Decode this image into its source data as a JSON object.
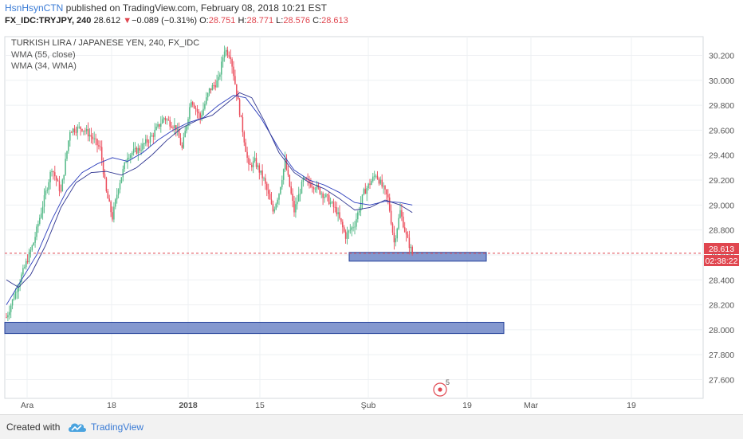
{
  "header": {
    "author": "HsnHsynCTN",
    "published_text": " published on TradingView.com, February 08, 2018 10:21 EST",
    "symbol": "FX_IDC:TRYJPY, 240",
    "last": "28.612",
    "change_arrow": "▼",
    "change": "−0.089 (−0.31%)",
    "o_label": "O:",
    "o_value": "28.751",
    "h_label": "H:",
    "h_value": "28.771",
    "l_label": "L:",
    "l_value": "28.576",
    "c_label": "C:",
    "c_value": "28.613"
  },
  "legend": {
    "title": "TURKISH LIRA / JAPANESE YEN, 240, FX_IDC",
    "wma1": "WMA (55, close)",
    "wma2": "WMA (34, WMA)"
  },
  "price_badge": "28.613",
  "time_badge": "02:38:22",
  "event_badge": "5",
  "footer": {
    "created_with": "Created with",
    "brand": "TradingView"
  },
  "colors": {
    "up": "#53b987",
    "down": "#eb4d5c",
    "wma55": "#2b3dbc",
    "wma34": "#2f3590",
    "zone_fill": "#6f86c7",
    "zone_stroke": "#24419a",
    "price_line": "#e0464f",
    "grid": "#eef0f3"
  },
  "chart_data": {
    "type": "candlestick",
    "title": "TURKISH LIRA / JAPANESE YEN, 240, FX_IDC",
    "ylim": [
      27.45,
      30.35
    ],
    "y_ticks": [
      "30.200",
      "30.000",
      "29.800",
      "29.600",
      "29.400",
      "29.200",
      "29.000",
      "28.800",
      "28.600",
      "28.400",
      "28.200",
      "28.000",
      "27.800",
      "27.600"
    ],
    "x_ticks": [
      "Ara",
      "18",
      "2018",
      "15",
      "Şub",
      "19",
      "Mar",
      "19"
    ],
    "last_price": 28.613,
    "support_zones": [
      {
        "low": 28.55,
        "high": 28.62
      },
      {
        "low": 27.97,
        "high": 28.06
      }
    ],
    "anchors": [
      [
        0,
        28.1
      ],
      [
        6,
        28.3
      ],
      [
        12,
        28.5
      ],
      [
        18,
        28.7
      ],
      [
        24,
        29.0
      ],
      [
        30,
        29.3
      ],
      [
        36,
        29.1
      ],
      [
        42,
        29.6
      ],
      [
        50,
        29.62
      ],
      [
        56,
        29.55
      ],
      [
        62,
        29.45
      ],
      [
        66,
        29.1
      ],
      [
        70,
        28.9
      ],
      [
        74,
        29.15
      ],
      [
        80,
        29.4
      ],
      [
        88,
        29.45
      ],
      [
        96,
        29.55
      ],
      [
        104,
        29.7
      ],
      [
        112,
        29.62
      ],
      [
        116,
        29.45
      ],
      [
        122,
        29.85
      ],
      [
        128,
        29.7
      ],
      [
        134,
        29.92
      ],
      [
        140,
        30.0
      ],
      [
        144,
        30.25
      ],
      [
        148,
        30.2
      ],
      [
        152,
        29.9
      ],
      [
        156,
        29.6
      ],
      [
        160,
        29.3
      ],
      [
        164,
        29.35
      ],
      [
        170,
        29.2
      ],
      [
        176,
        28.95
      ],
      [
        180,
        29.1
      ],
      [
        184,
        29.35
      ],
      [
        190,
        28.95
      ],
      [
        196,
        29.2
      ],
      [
        204,
        29.15
      ],
      [
        212,
        29.05
      ],
      [
        218,
        28.95
      ],
      [
        224,
        28.75
      ],
      [
        230,
        28.85
      ],
      [
        236,
        29.1
      ],
      [
        244,
        29.25
      ],
      [
        248,
        29.15
      ],
      [
        252,
        29.05
      ],
      [
        256,
        28.7
      ],
      [
        260,
        28.95
      ],
      [
        264,
        28.75
      ],
      [
        268,
        28.61
      ]
    ],
    "wma55_anchors": [
      [
        0,
        28.2
      ],
      [
        10,
        28.4
      ],
      [
        20,
        28.6
      ],
      [
        30,
        28.88
      ],
      [
        40,
        29.12
      ],
      [
        50,
        29.26
      ],
      [
        60,
        29.33
      ],
      [
        70,
        29.38
      ],
      [
        80,
        29.35
      ],
      [
        90,
        29.42
      ],
      [
        100,
        29.52
      ],
      [
        110,
        29.6
      ],
      [
        120,
        29.66
      ],
      [
        130,
        29.7
      ],
      [
        140,
        29.8
      ],
      [
        150,
        29.88
      ],
      [
        158,
        29.86
      ],
      [
        168,
        29.7
      ],
      [
        180,
        29.45
      ],
      [
        190,
        29.28
      ],
      [
        200,
        29.2
      ],
      [
        210,
        29.16
      ],
      [
        220,
        29.1
      ],
      [
        230,
        29.02
      ],
      [
        240,
        29.0
      ],
      [
        250,
        29.03
      ],
      [
        260,
        29.02
      ],
      [
        268,
        29.0
      ]
    ],
    "wma34_anchors": [
      [
        0,
        28.4
      ],
      [
        8,
        28.34
      ],
      [
        16,
        28.44
      ],
      [
        26,
        28.68
      ],
      [
        36,
        28.98
      ],
      [
        46,
        29.18
      ],
      [
        56,
        29.26
      ],
      [
        66,
        29.27
      ],
      [
        76,
        29.24
      ],
      [
        86,
        29.3
      ],
      [
        96,
        29.4
      ],
      [
        106,
        29.52
      ],
      [
        116,
        29.62
      ],
      [
        126,
        29.68
      ],
      [
        136,
        29.72
      ],
      [
        146,
        29.82
      ],
      [
        154,
        29.9
      ],
      [
        162,
        29.86
      ],
      [
        170,
        29.68
      ],
      [
        180,
        29.42
      ],
      [
        190,
        29.26
      ],
      [
        200,
        29.18
      ],
      [
        210,
        29.13
      ],
      [
        220,
        29.05
      ],
      [
        230,
        28.96
      ],
      [
        240,
        28.98
      ],
      [
        250,
        29.04
      ],
      [
        260,
        29.0
      ],
      [
        268,
        28.94
      ]
    ]
  }
}
